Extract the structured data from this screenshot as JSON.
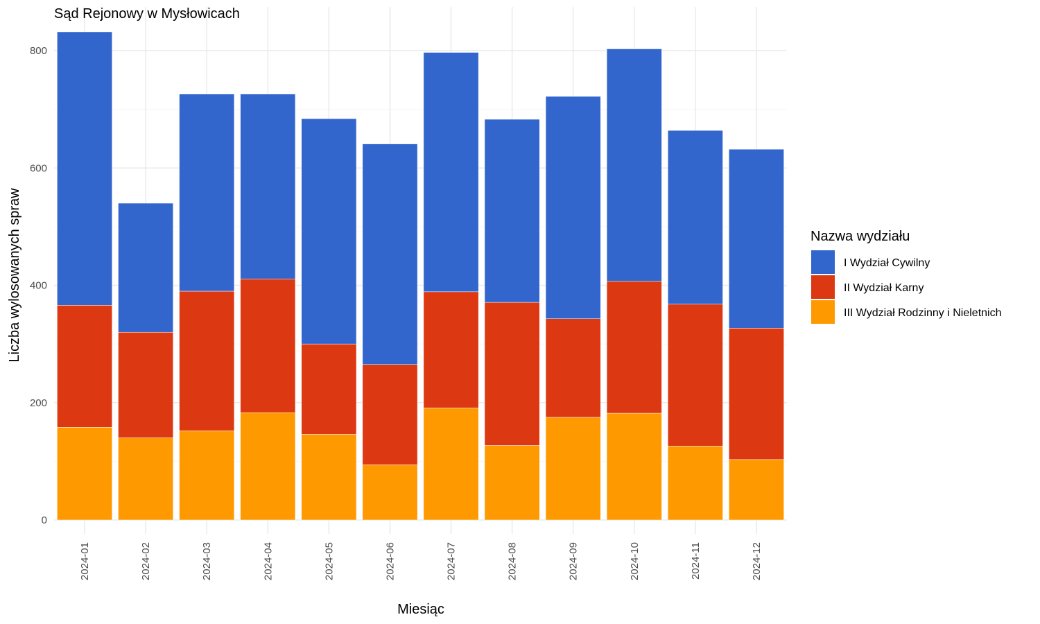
{
  "chart_data": {
    "type": "bar",
    "stacked": true,
    "title": "Sąd Rejonowy w Mysłowicach",
    "xlabel": "Miesiąc",
    "ylabel": "Liczba wylosowanych spraw",
    "ylim": [
      0,
      850
    ],
    "yticks": [
      0,
      200,
      400,
      600,
      800
    ],
    "grid": true,
    "legend_title": "Nazwa wydziału",
    "legend_position": "right",
    "categories": [
      "2024-01",
      "2024-02",
      "2024-03",
      "2024-04",
      "2024-05",
      "2024-06",
      "2024-07",
      "2024-08",
      "2024-09",
      "2024-10",
      "2024-11",
      "2024-12"
    ],
    "series": [
      {
        "name": "I Wydział Cywilny",
        "color": "#3366CC",
        "values": [
          466,
          220,
          336,
          315,
          384,
          376,
          408,
          312,
          379,
          396,
          296,
          305
        ]
      },
      {
        "name": "II Wydział Karny",
        "color": "#DC3912",
        "values": [
          208,
          180,
          238,
          228,
          154,
          171,
          198,
          244,
          168,
          225,
          242,
          224
        ]
      },
      {
        "name": "III Wydział Rodzinny i Nieletnich",
        "color": "#FF9900",
        "values": [
          158,
          140,
          152,
          183,
          146,
          94,
          191,
          127,
          175,
          182,
          126,
          103
        ]
      }
    ]
  }
}
